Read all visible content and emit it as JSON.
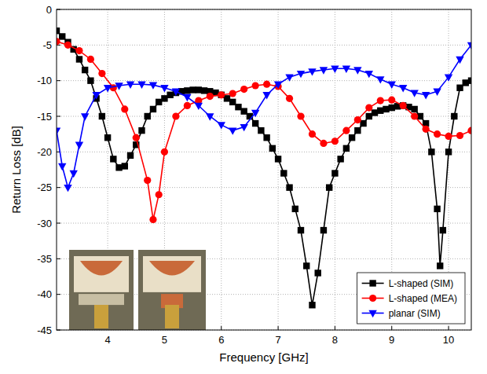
{
  "chart_data": {
    "type": "line",
    "x_label": "Frequency [GHz]",
    "y_label": "Return Loss [dB]",
    "xlim": [
      3.1,
      10.4
    ],
    "ylim": [
      -45,
      0
    ],
    "xticks": [
      4,
      5,
      6,
      7,
      8,
      9,
      10
    ],
    "yticks": [
      -45,
      -40,
      -35,
      -30,
      -25,
      -20,
      -15,
      -10,
      -5,
      0
    ],
    "grid": true,
    "legend": "lower right",
    "series": [
      {
        "name": "L-shaped (SIM)",
        "color": "#000000",
        "marker": "square",
        "line_style": "solid",
        "x": [
          3.1,
          3.2,
          3.3,
          3.4,
          3.5,
          3.6,
          3.7,
          3.8,
          3.9,
          4.0,
          4.1,
          4.2,
          4.3,
          4.4,
          4.5,
          4.6,
          4.7,
          4.8,
          4.9,
          5.0,
          5.1,
          5.2,
          5.3,
          5.4,
          5.5,
          5.6,
          5.7,
          5.8,
          5.9,
          6.0,
          6.1,
          6.2,
          6.3,
          6.4,
          6.5,
          6.6,
          6.7,
          6.8,
          6.9,
          7.0,
          7.1,
          7.2,
          7.3,
          7.4,
          7.5,
          7.6,
          7.7,
          7.8,
          7.9,
          8.0,
          8.1,
          8.2,
          8.3,
          8.4,
          8.5,
          8.6,
          8.7,
          8.8,
          8.9,
          9.0,
          9.1,
          9.2,
          9.3,
          9.4,
          9.5,
          9.6,
          9.7,
          9.8,
          9.85,
          9.9,
          10.0,
          10.1,
          10.2,
          10.3,
          10.4
        ],
        "values": [
          -3,
          -3.8,
          -4.6,
          -5.6,
          -7,
          -8.5,
          -10,
          -12.5,
          -15,
          -18,
          -21,
          -22.2,
          -22,
          -20.5,
          -19,
          -17,
          -15,
          -14,
          -13,
          -12.5,
          -12,
          -11.7,
          -11.5,
          -11.4,
          -11.3,
          -11.3,
          -11.4,
          -11.5,
          -11.7,
          -12,
          -12.5,
          -13,
          -13.7,
          -14.3,
          -15,
          -16,
          -17,
          -18,
          -19.5,
          -21,
          -23,
          -25,
          -28,
          -31,
          -36,
          -41.5,
          -37,
          -31,
          -25,
          -23,
          -21,
          -19.5,
          -18,
          -17,
          -16,
          -15,
          -14.5,
          -14.2,
          -14,
          -13.8,
          -13.6,
          -13.5,
          -13.7,
          -14,
          -15,
          -16,
          -20,
          -28,
          -36,
          -31,
          -20,
          -15,
          -11,
          -10.3,
          -10
        ]
      },
      {
        "name": "L-shaped (MEA)",
        "color": "#ff0000",
        "marker": "circle",
        "line_style": "solid",
        "x": [
          3.1,
          3.3,
          3.5,
          3.7,
          3.9,
          4.1,
          4.3,
          4.5,
          4.7,
          4.8,
          4.9,
          5.0,
          5.2,
          5.4,
          5.6,
          5.8,
          6.0,
          6.2,
          6.4,
          6.6,
          6.8,
          7.0,
          7.2,
          7.4,
          7.6,
          7.8,
          8.0,
          8.2,
          8.4,
          8.6,
          8.8,
          9.0,
          9.2,
          9.4,
          9.6,
          9.8,
          10.0,
          10.2,
          10.4
        ],
        "values": [
          -4.5,
          -5,
          -5.8,
          -7,
          -9,
          -11,
          -14,
          -18,
          -24,
          -29.5,
          -26,
          -20,
          -15,
          -13.5,
          -12.8,
          -12.2,
          -12,
          -11.8,
          -11.2,
          -10.7,
          -10.5,
          -10.8,
          -12.5,
          -15,
          -17.5,
          -18.8,
          -18.5,
          -17,
          -15.5,
          -13.8,
          -12.8,
          -12.7,
          -13.5,
          -15,
          -16.8,
          -17.5,
          -17.8,
          -17.7,
          -17
        ]
      },
      {
        "name": "planar (SIM)",
        "color": "#0000ff",
        "marker": "triangle-down",
        "line_style": "solid",
        "x": [
          3.1,
          3.2,
          3.3,
          3.4,
          3.5,
          3.6,
          3.8,
          4.0,
          4.2,
          4.4,
          4.6,
          4.8,
          5.0,
          5.2,
          5.4,
          5.6,
          5.8,
          6.0,
          6.2,
          6.4,
          6.6,
          6.8,
          7.0,
          7.2,
          7.4,
          7.6,
          7.8,
          8.0,
          8.2,
          8.4,
          8.6,
          8.8,
          9.0,
          9.2,
          9.4,
          9.6,
          9.8,
          10.0,
          10.2,
          10.4
        ],
        "values": [
          -17,
          -22,
          -25,
          -23,
          -19,
          -15,
          -12,
          -11,
          -10.7,
          -10.5,
          -10.5,
          -10.6,
          -11,
          -11.5,
          -12.3,
          -13.5,
          -15,
          -16.2,
          -17,
          -16.5,
          -14.5,
          -12,
          -10.5,
          -9.5,
          -9,
          -8.7,
          -8.5,
          -8.3,
          -8.3,
          -8.5,
          -9,
          -9.8,
          -10.5,
          -11,
          -11.7,
          -12,
          -11.5,
          -9.5,
          -7,
          -5
        ]
      }
    ]
  }
}
